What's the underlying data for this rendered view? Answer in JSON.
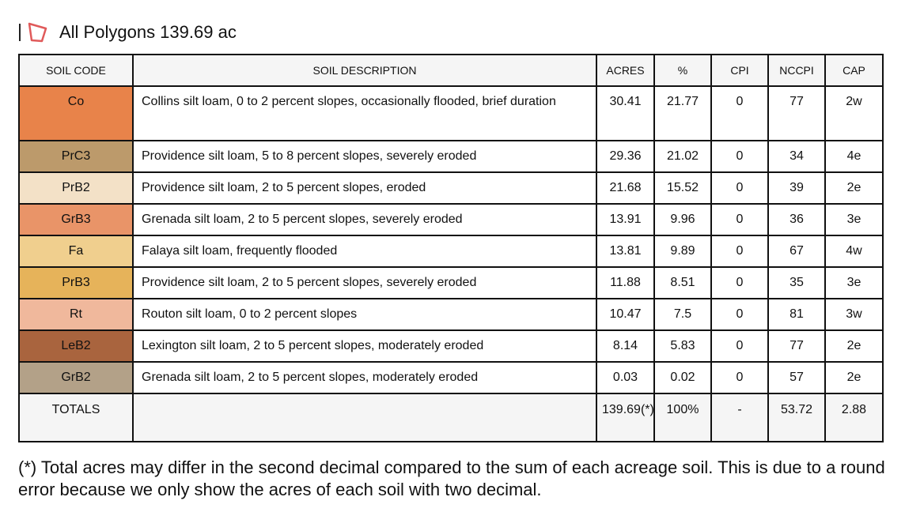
{
  "header": {
    "title": "All Polygons 139.69 ac",
    "icon": "polygon-icon",
    "icon_color": "#e05a5a"
  },
  "table": {
    "columns": [
      "SOIL CODE",
      "SOIL DESCRIPTION",
      "ACRES",
      "%",
      "CPI",
      "NCCPI",
      "CAP"
    ],
    "rows": [
      {
        "code": "Co",
        "color": "#e8834a",
        "desc": "Collins silt loam, 0 to 2 percent slopes, occasionally flooded, brief duration",
        "acres": "30.41",
        "pct": "21.77",
        "cpi": "0",
        "nccpi": "77",
        "cap": "2w"
      },
      {
        "code": "PrC3",
        "color": "#bc9a6b",
        "desc": "Providence silt loam, 5 to 8 percent slopes, severely eroded",
        "acres": "29.36",
        "pct": "21.02",
        "cpi": "0",
        "nccpi": "34",
        "cap": "4e"
      },
      {
        "code": "PrB2",
        "color": "#f3e1c7",
        "desc": "Providence silt loam, 2 to 5 percent slopes, eroded",
        "acres": "21.68",
        "pct": "15.52",
        "cpi": "0",
        "nccpi": "39",
        "cap": "2e"
      },
      {
        "code": "GrB3",
        "color": "#e99468",
        "desc": "Grenada silt loam, 2 to 5 percent slopes, severely eroded",
        "acres": "13.91",
        "pct": "9.96",
        "cpi": "0",
        "nccpi": "36",
        "cap": "3e"
      },
      {
        "code": "Fa",
        "color": "#f0cf8e",
        "desc": "Falaya silt loam, frequently flooded",
        "acres": "13.81",
        "pct": "9.89",
        "cpi": "0",
        "nccpi": "67",
        "cap": "4w"
      },
      {
        "code": "PrB3",
        "color": "#e6b35a",
        "desc": "Providence silt loam, 2 to 5 percent slopes, severely eroded",
        "acres": "11.88",
        "pct": "8.51",
        "cpi": "0",
        "nccpi": "35",
        "cap": "3e"
      },
      {
        "code": "Rt",
        "color": "#f0b89c",
        "desc": "Routon silt loam, 0 to 2 percent slopes",
        "acres": "10.47",
        "pct": "7.5",
        "cpi": "0",
        "nccpi": "81",
        "cap": "3w"
      },
      {
        "code": "LeB2",
        "color": "#a9643e",
        "desc": "Lexington silt loam, 2 to 5 percent slopes, moderately eroded",
        "acres": "8.14",
        "pct": "5.83",
        "cpi": "0",
        "nccpi": "77",
        "cap": "2e"
      },
      {
        "code": "GrB2",
        "color": "#b3a188",
        "desc": "Grenada silt loam, 2 to 5 percent slopes, moderately eroded",
        "acres": "0.03",
        "pct": "0.02",
        "cpi": "0",
        "nccpi": "57",
        "cap": "2e"
      }
    ],
    "totals": {
      "label": "TOTALS",
      "desc": "",
      "acres": "139.69(*)",
      "pct": "100%",
      "cpi": "-",
      "nccpi": "53.72",
      "cap": "2.88"
    }
  },
  "footnote": "(*) Total acres may differ in the second decimal compared to the sum of each acreage soil. This is due to a round error because we only show the acres of each soil with two decimal."
}
